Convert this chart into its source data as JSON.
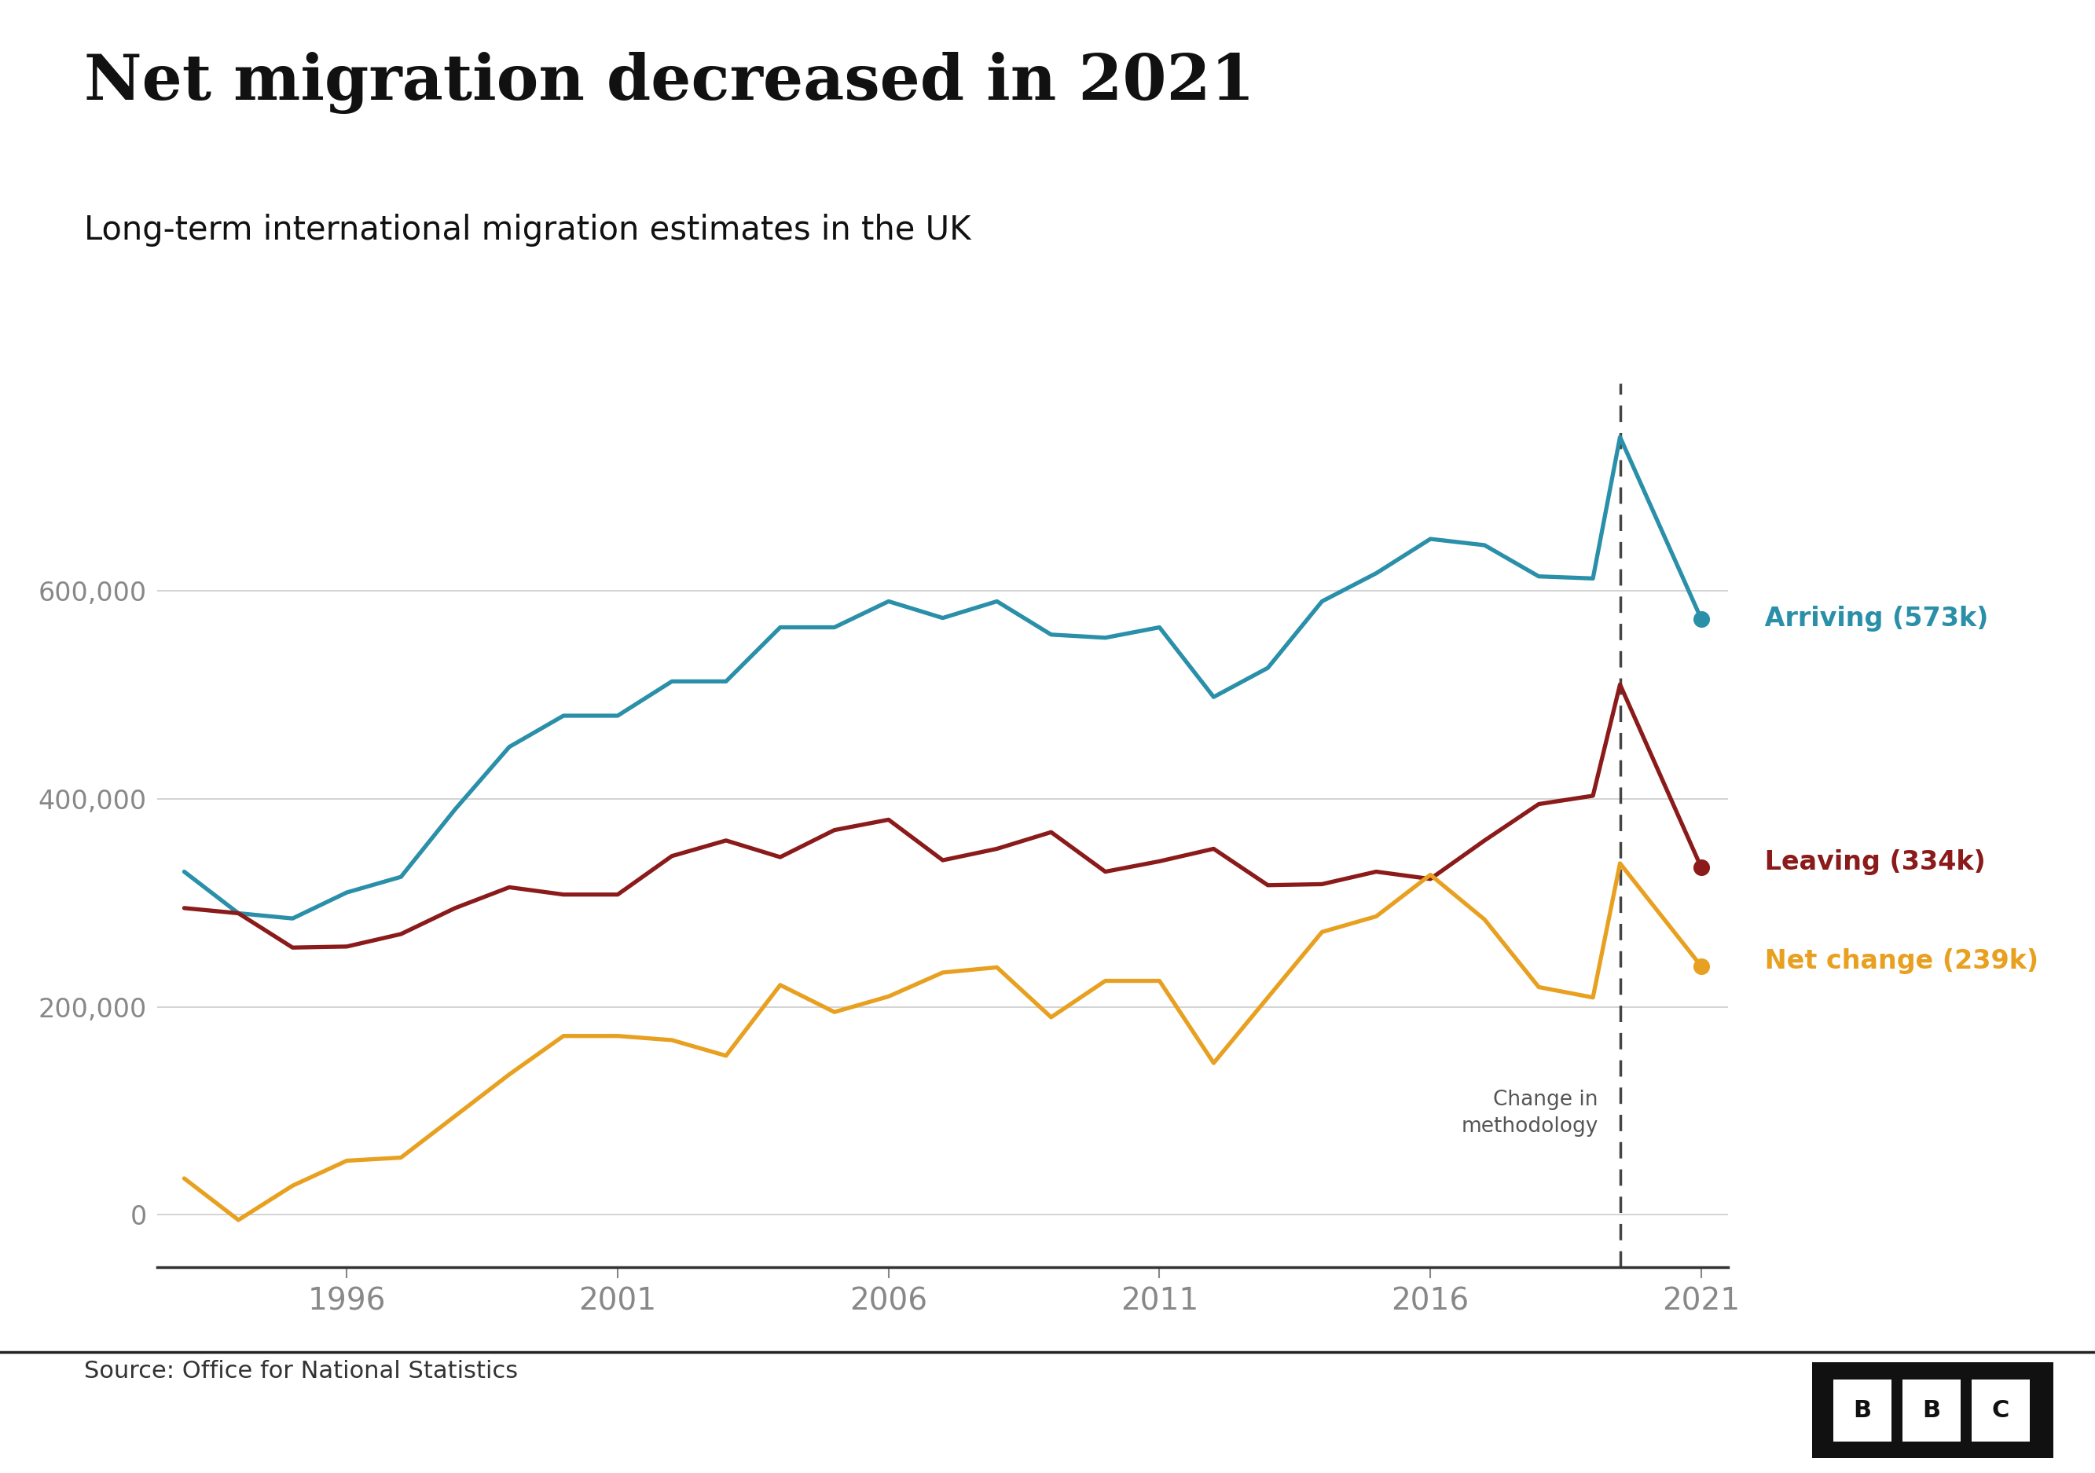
{
  "title": "Net migration decreased in 2021",
  "subtitle": "Long-term international migration estimates in the UK",
  "source": "Source: Office for National Statistics",
  "title_color": "#111111",
  "subtitle_color": "#111111",
  "background_color": "#ffffff",
  "arriving_color": "#2a8fa8",
  "leaving_color": "#8b1a1a",
  "net_change_color": "#e8a020",
  "arriving_label": "Arriving (573k)",
  "leaving_label": "Leaving (334k)",
  "net_change_label": "Net change (239k)",
  "methodology_line_x": 2019.5,
  "methodology_text": "Change in\nmethodology",
  "ylim": [
    -50000,
    800000
  ],
  "yticks": [
    0,
    200000,
    400000,
    600000
  ],
  "ytick_labels": [
    "0",
    "200,000",
    "400,000",
    "600,000"
  ],
  "xticks": [
    1996,
    2001,
    2006,
    2011,
    2016,
    2021
  ],
  "arriving": {
    "years": [
      1993,
      1994,
      1995,
      1996,
      1997,
      1998,
      1999,
      2000,
      2001,
      2002,
      2003,
      2004,
      2005,
      2006,
      2007,
      2008,
      2009,
      2010,
      2011,
      2012,
      2013,
      2014,
      2015,
      2016,
      2017,
      2018,
      2019,
      2019.5,
      2021
    ],
    "values": [
      330000,
      290000,
      285000,
      310000,
      325000,
      390000,
      450000,
      480000,
      480000,
      513000,
      513000,
      565000,
      565000,
      590000,
      574000,
      590000,
      558000,
      555000,
      565000,
      498000,
      526000,
      590000,
      617000,
      650000,
      644000,
      614000,
      612000,
      748000,
      573000
    ]
  },
  "leaving": {
    "years": [
      1993,
      1994,
      1995,
      1996,
      1997,
      1998,
      1999,
      2000,
      2001,
      2002,
      2003,
      2004,
      2005,
      2006,
      2007,
      2008,
      2009,
      2010,
      2011,
      2012,
      2013,
      2014,
      2015,
      2016,
      2017,
      2018,
      2019,
      2019.5,
      2021
    ],
    "values": [
      295000,
      290000,
      257000,
      258000,
      270000,
      295000,
      315000,
      308000,
      308000,
      345000,
      360000,
      344000,
      370000,
      380000,
      341000,
      352000,
      368000,
      330000,
      340000,
      352000,
      317000,
      318000,
      330000,
      323000,
      360000,
      395000,
      403000,
      510000,
      334000
    ]
  },
  "net_change": {
    "years": [
      1993,
      1994,
      1995,
      1996,
      1997,
      1998,
      1999,
      2000,
      2001,
      2002,
      2003,
      2004,
      2005,
      2006,
      2007,
      2008,
      2009,
      2010,
      2011,
      2012,
      2013,
      2014,
      2015,
      2016,
      2017,
      2018,
      2019,
      2019.5,
      2021
    ],
    "values": [
      35000,
      -5000,
      28000,
      52000,
      55000,
      95000,
      135000,
      172000,
      172000,
      168000,
      153000,
      221000,
      195000,
      210000,
      233000,
      238000,
      190000,
      225000,
      225000,
      146000,
      209000,
      272000,
      287000,
      327000,
      284000,
      219000,
      209000,
      338000,
      239000
    ]
  }
}
